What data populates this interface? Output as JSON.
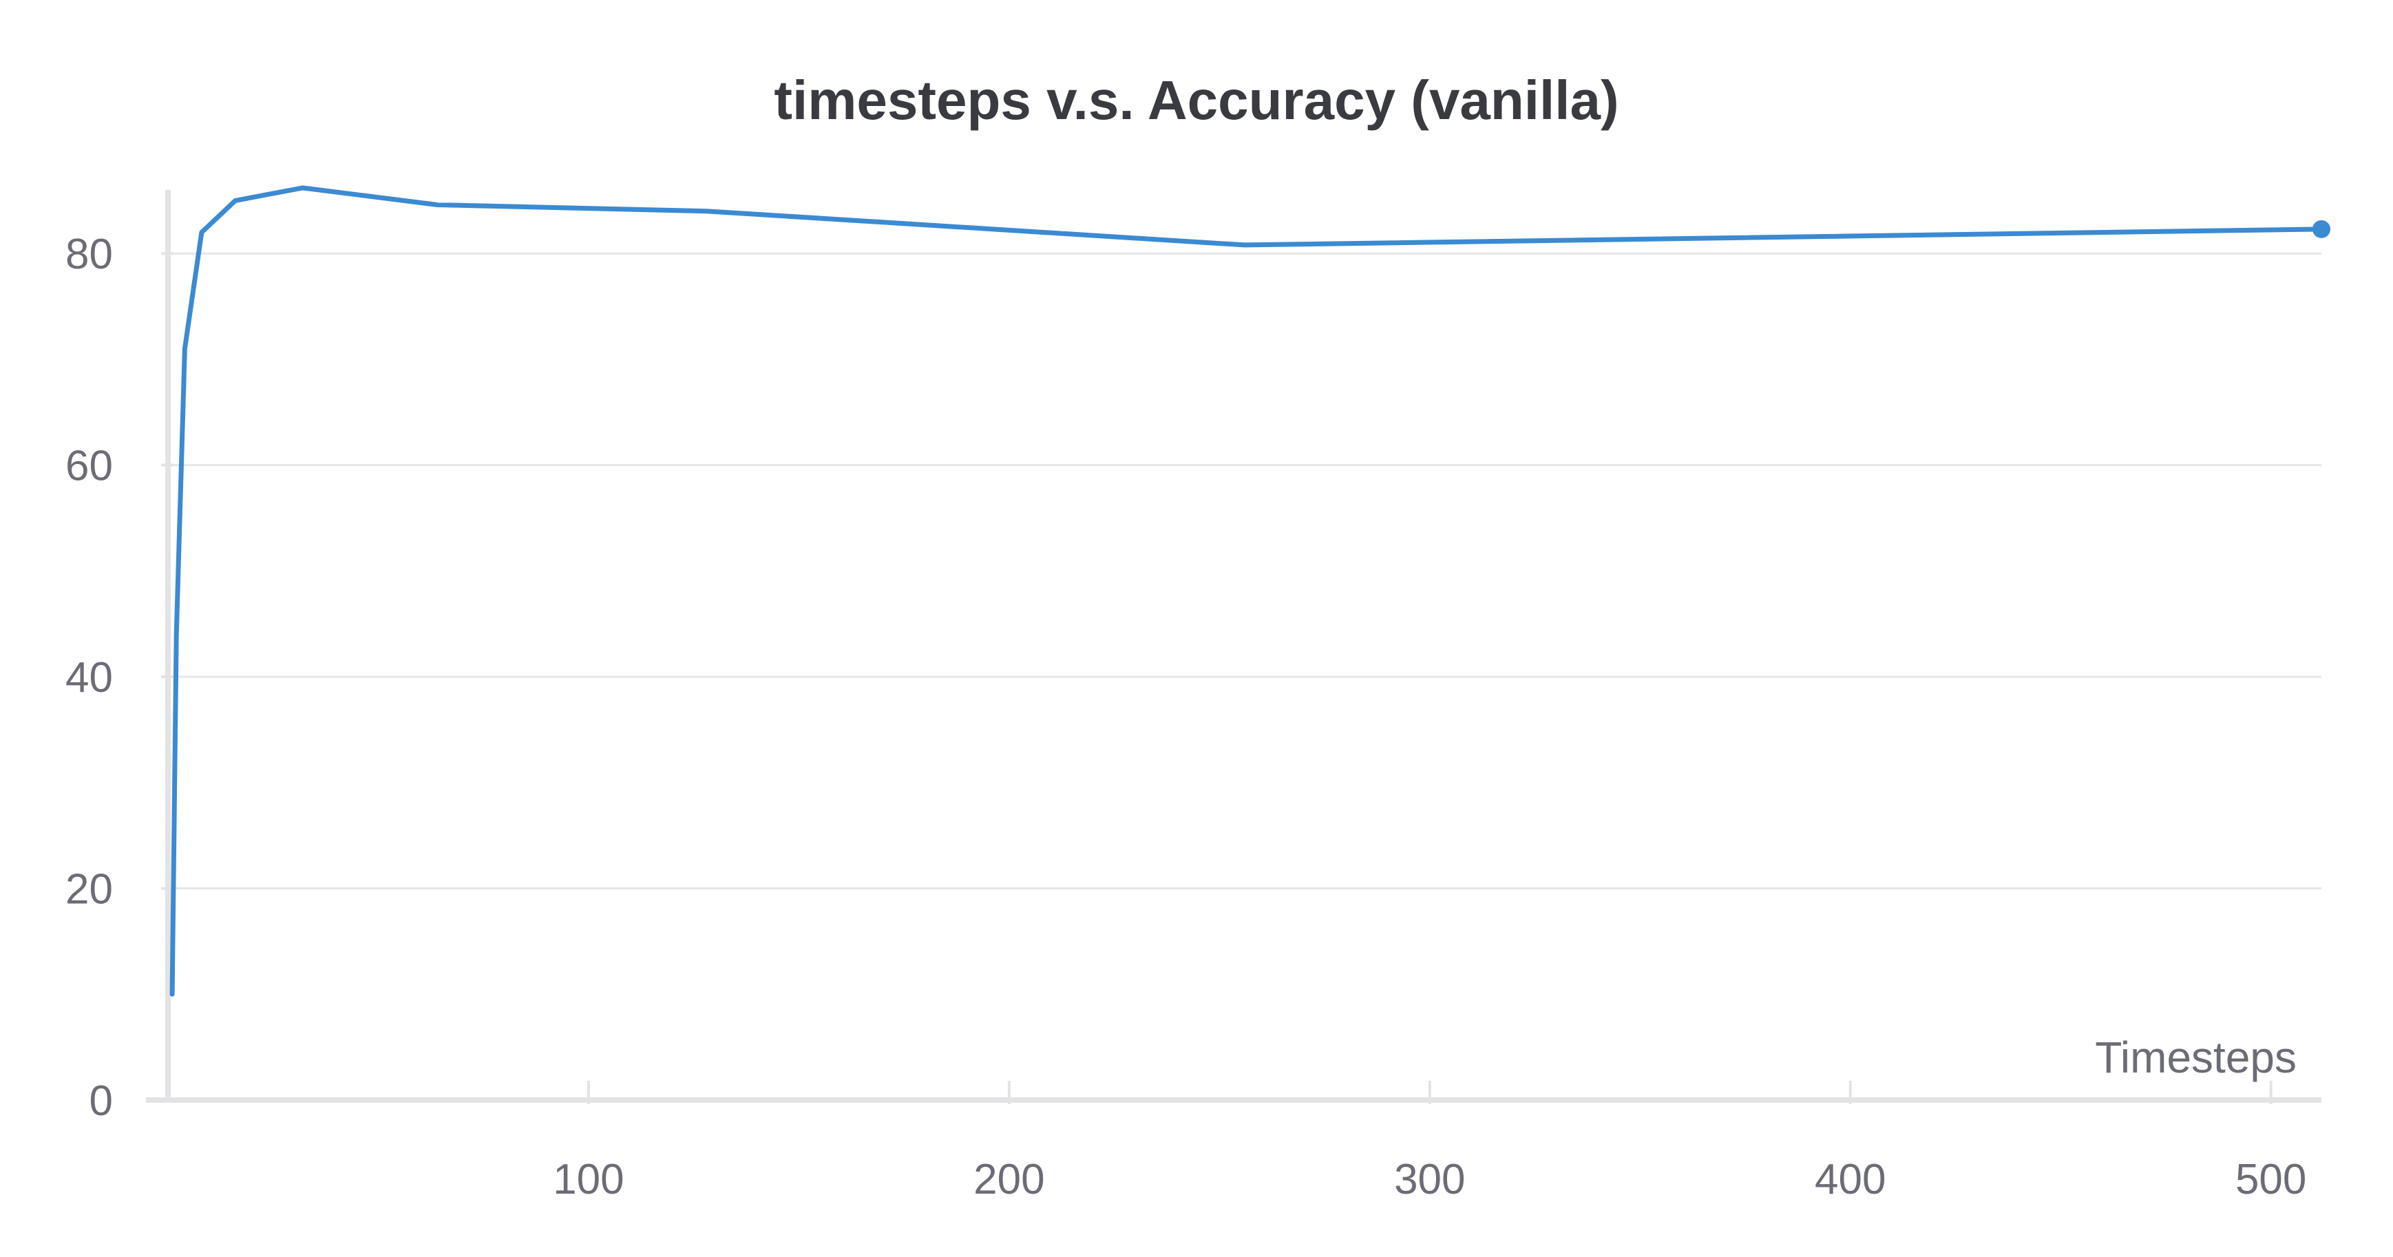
{
  "chart_data": {
    "type": "line",
    "title": "timesteps v.s. Accuracy (vanilla)",
    "xlabel": "Timesteps",
    "ylabel": "",
    "xlim": [
      0,
      512
    ],
    "ylim": [
      0,
      86
    ],
    "x_ticks": [
      100,
      200,
      300,
      400,
      500
    ],
    "y_ticks": [
      0,
      20,
      40,
      60,
      80
    ],
    "grid": true,
    "series": [
      {
        "color": "#3b8ad2",
        "x": [
          1,
          2,
          4,
          8,
          16,
          32,
          64,
          128,
          256,
          512
        ],
        "y": [
          10,
          44,
          71,
          82,
          85,
          86.2,
          84.6,
          84,
          80.8,
          82.3
        ]
      }
    ]
  }
}
